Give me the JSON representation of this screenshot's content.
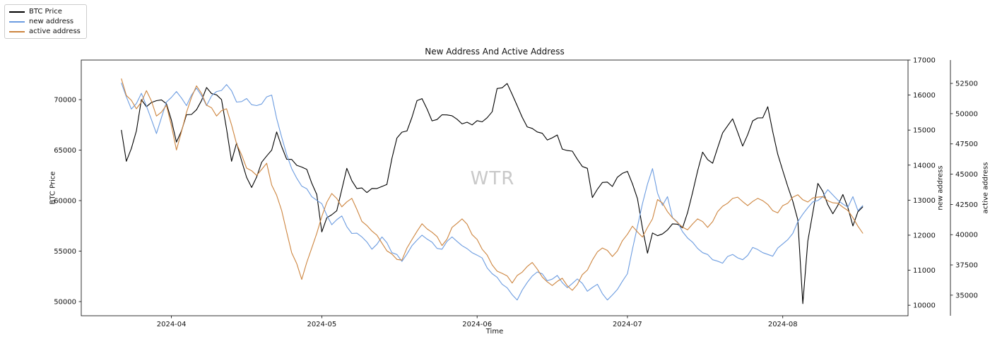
{
  "chart_data": {
    "type": "line",
    "title": "New Address And Active Address",
    "xlabel": "Time",
    "watermark": "WTR",
    "grid": false,
    "legend_position": "upper-left-outside",
    "x_axis": {
      "lim": [
        "2024-03-14",
        "2024-08-26"
      ],
      "ticks": [
        {
          "date": "2024-04-01",
          "label": "2024-04"
        },
        {
          "date": "2024-05-01",
          "label": "2024-05"
        },
        {
          "date": "2024-06-01",
          "label": "2024-06"
        },
        {
          "date": "2024-07-01",
          "label": "2024-07"
        },
        {
          "date": "2024-08-01",
          "label": "2024-08"
        }
      ]
    },
    "y_axes": {
      "btc": {
        "label": "BTC Price",
        "side": "left",
        "lim": [
          48600,
          73920
        ],
        "ticks": [
          50000,
          55000,
          60000,
          65000,
          70000
        ]
      },
      "new": {
        "label": "new address",
        "side": "right",
        "lim": [
          9700,
          17000
        ],
        "ticks": [
          10000,
          11000,
          12000,
          13000,
          14000,
          15000,
          16000,
          17000
        ]
      },
      "active": {
        "label": "active address",
        "side": "right-outer",
        "lim": [
          33300,
          54430
        ],
        "ticks": [
          35000,
          37500,
          40000,
          42500,
          45000,
          47500,
          50000,
          52500
        ]
      }
    },
    "series": [
      {
        "name": "BTC Price",
        "axis": "btc",
        "color": "#000000",
        "points": [
          [
            "2024-03-22",
            67000
          ],
          [
            "2024-03-23",
            63900
          ],
          [
            "2024-03-25",
            66900
          ],
          [
            "2024-03-26",
            70000
          ],
          [
            "2024-03-27",
            69300
          ],
          [
            "2024-03-29",
            69900
          ],
          [
            "2024-03-31",
            69600
          ],
          [
            "2024-04-02",
            65800
          ],
          [
            "2024-04-04",
            68500
          ],
          [
            "2024-04-06",
            69000
          ],
          [
            "2024-04-08",
            71200
          ],
          [
            "2024-04-09",
            70600
          ],
          [
            "2024-04-11",
            70000
          ],
          [
            "2024-04-12",
            67100
          ],
          [
            "2024-04-13",
            63900
          ],
          [
            "2024-04-14",
            65700
          ],
          [
            "2024-04-16",
            62300
          ],
          [
            "2024-04-17",
            61300
          ],
          [
            "2024-04-19",
            63800
          ],
          [
            "2024-04-21",
            65000
          ],
          [
            "2024-04-22",
            66800
          ],
          [
            "2024-04-24",
            64100
          ],
          [
            "2024-04-26",
            63500
          ],
          [
            "2024-04-28",
            63100
          ],
          [
            "2024-04-30",
            60600
          ],
          [
            "2024-05-01",
            56900
          ],
          [
            "2024-05-02",
            58300
          ],
          [
            "2024-05-04",
            59000
          ],
          [
            "2024-05-06",
            63200
          ],
          [
            "2024-05-08",
            61200
          ],
          [
            "2024-05-10",
            60800
          ],
          [
            "2024-05-12",
            61200
          ],
          [
            "2024-05-14",
            61600
          ],
          [
            "2024-05-16",
            66200
          ],
          [
            "2024-05-18",
            66900
          ],
          [
            "2024-05-20",
            69900
          ],
          [
            "2024-05-21",
            70100
          ],
          [
            "2024-05-23",
            67900
          ],
          [
            "2024-05-25",
            68500
          ],
          [
            "2024-05-27",
            68400
          ],
          [
            "2024-05-29",
            67600
          ],
          [
            "2024-05-31",
            67500
          ],
          [
            "2024-06-02",
            67800
          ],
          [
            "2024-06-04",
            68800
          ],
          [
            "2024-06-05",
            71100
          ],
          [
            "2024-06-07",
            71600
          ],
          [
            "2024-06-09",
            69400
          ],
          [
            "2024-06-11",
            67300
          ],
          [
            "2024-06-13",
            66800
          ],
          [
            "2024-06-15",
            66000
          ],
          [
            "2024-06-17",
            66500
          ],
          [
            "2024-06-18",
            65100
          ],
          [
            "2024-06-20",
            64900
          ],
          [
            "2024-06-21",
            64100
          ],
          [
            "2024-06-23",
            63200
          ],
          [
            "2024-06-24",
            60300
          ],
          [
            "2024-06-26",
            61800
          ],
          [
            "2024-06-28",
            61400
          ],
          [
            "2024-06-30",
            62700
          ],
          [
            "2024-07-01",
            62900
          ],
          [
            "2024-07-03",
            60200
          ],
          [
            "2024-07-05",
            54800
          ],
          [
            "2024-07-06",
            56800
          ],
          [
            "2024-07-08",
            56700
          ],
          [
            "2024-07-10",
            57700
          ],
          [
            "2024-07-12",
            57300
          ],
          [
            "2024-07-14",
            60800
          ],
          [
            "2024-07-16",
            64800
          ],
          [
            "2024-07-18",
            63700
          ],
          [
            "2024-07-20",
            66700
          ],
          [
            "2024-07-22",
            68100
          ],
          [
            "2024-07-24",
            65400
          ],
          [
            "2024-07-26",
            67900
          ],
          [
            "2024-07-28",
            68200
          ],
          [
            "2024-07-29",
            69300
          ],
          [
            "2024-07-31",
            64600
          ],
          [
            "2024-08-02",
            61400
          ],
          [
            "2024-08-04",
            58100
          ],
          [
            "2024-08-05",
            49800
          ],
          [
            "2024-08-06",
            56000
          ],
          [
            "2024-08-08",
            61700
          ],
          [
            "2024-08-09",
            60900
          ],
          [
            "2024-08-11",
            58700
          ],
          [
            "2024-08-13",
            60600
          ],
          [
            "2024-08-14",
            59300
          ],
          [
            "2024-08-15",
            57500
          ],
          [
            "2024-08-16",
            58900
          ],
          [
            "2024-08-17",
            59400
          ]
        ]
      },
      {
        "name": "new address",
        "axis": "new",
        "color": "#6c9ce0",
        "points": [
          [
            "2024-03-22",
            16350
          ],
          [
            "2024-03-24",
            15600
          ],
          [
            "2024-03-26",
            16050
          ],
          [
            "2024-03-28",
            15300
          ],
          [
            "2024-03-29",
            14900
          ],
          [
            "2024-03-31",
            15800
          ],
          [
            "2024-04-02",
            16100
          ],
          [
            "2024-04-04",
            15700
          ],
          [
            "2024-04-06",
            16200
          ],
          [
            "2024-04-08",
            15700
          ],
          [
            "2024-04-10",
            16100
          ],
          [
            "2024-04-12",
            16300
          ],
          [
            "2024-04-14",
            15800
          ],
          [
            "2024-04-16",
            15900
          ],
          [
            "2024-04-18",
            15700
          ],
          [
            "2024-04-20",
            15950
          ],
          [
            "2024-04-21",
            16000
          ],
          [
            "2024-04-23",
            14800
          ],
          [
            "2024-04-25",
            13900
          ],
          [
            "2024-04-27",
            13400
          ],
          [
            "2024-04-29",
            13100
          ],
          [
            "2024-05-01",
            12900
          ],
          [
            "2024-05-03",
            12300
          ],
          [
            "2024-05-05",
            12550
          ],
          [
            "2024-05-07",
            12050
          ],
          [
            "2024-05-09",
            11950
          ],
          [
            "2024-05-11",
            11600
          ],
          [
            "2024-05-13",
            11950
          ],
          [
            "2024-05-15",
            11500
          ],
          [
            "2024-05-17",
            11250
          ],
          [
            "2024-05-19",
            11700
          ],
          [
            "2024-05-21",
            12000
          ],
          [
            "2024-05-23",
            11800
          ],
          [
            "2024-05-25",
            11600
          ],
          [
            "2024-05-27",
            11950
          ],
          [
            "2024-05-29",
            11700
          ],
          [
            "2024-05-31",
            11500
          ],
          [
            "2024-06-02",
            11350
          ],
          [
            "2024-06-04",
            10900
          ],
          [
            "2024-06-06",
            10600
          ],
          [
            "2024-06-08",
            10300
          ],
          [
            "2024-06-09",
            10150
          ],
          [
            "2024-06-11",
            10650
          ],
          [
            "2024-06-13",
            10950
          ],
          [
            "2024-06-15",
            10700
          ],
          [
            "2024-06-17",
            10850
          ],
          [
            "2024-06-19",
            10500
          ],
          [
            "2024-06-21",
            10750
          ],
          [
            "2024-06-23",
            10400
          ],
          [
            "2024-06-25",
            10600
          ],
          [
            "2024-06-27",
            10150
          ],
          [
            "2024-06-29",
            10450
          ],
          [
            "2024-07-01",
            10900
          ],
          [
            "2024-07-02",
            11600
          ],
          [
            "2024-07-04",
            12900
          ],
          [
            "2024-07-06",
            13900
          ],
          [
            "2024-07-07",
            13200
          ],
          [
            "2024-07-08",
            12850
          ],
          [
            "2024-07-09",
            13100
          ],
          [
            "2024-07-10",
            12500
          ],
          [
            "2024-07-12",
            12100
          ],
          [
            "2024-07-14",
            11800
          ],
          [
            "2024-07-16",
            11500
          ],
          [
            "2024-07-18",
            11300
          ],
          [
            "2024-07-20",
            11200
          ],
          [
            "2024-07-22",
            11450
          ],
          [
            "2024-07-24",
            11300
          ],
          [
            "2024-07-26",
            11650
          ],
          [
            "2024-07-28",
            11500
          ],
          [
            "2024-07-30",
            11400
          ],
          [
            "2024-08-01",
            11750
          ],
          [
            "2024-08-03",
            12050
          ],
          [
            "2024-08-05",
            12600
          ],
          [
            "2024-08-07",
            12950
          ],
          [
            "2024-08-09",
            13100
          ],
          [
            "2024-08-10",
            13300
          ],
          [
            "2024-08-12",
            13000
          ],
          [
            "2024-08-14",
            12800
          ],
          [
            "2024-08-15",
            13100
          ],
          [
            "2024-08-16",
            12700
          ],
          [
            "2024-08-17",
            12850
          ]
        ]
      },
      {
        "name": "active address",
        "axis": "active",
        "color": "#cd853f",
        "points": [
          [
            "2024-03-22",
            52900
          ],
          [
            "2024-03-23",
            51500
          ],
          [
            "2024-03-25",
            50400
          ],
          [
            "2024-03-27",
            51900
          ],
          [
            "2024-03-29",
            49800
          ],
          [
            "2024-03-31",
            50700
          ],
          [
            "2024-04-01",
            49000
          ],
          [
            "2024-04-02",
            47000
          ],
          [
            "2024-04-04",
            50100
          ],
          [
            "2024-04-06",
            52300
          ],
          [
            "2024-04-08",
            50700
          ],
          [
            "2024-04-10",
            49800
          ],
          [
            "2024-04-12",
            50400
          ],
          [
            "2024-04-14",
            47500
          ],
          [
            "2024-04-16",
            45500
          ],
          [
            "2024-04-18",
            44900
          ],
          [
            "2024-04-20",
            45900
          ],
          [
            "2024-04-21",
            44100
          ],
          [
            "2024-04-23",
            42000
          ],
          [
            "2024-04-25",
            38500
          ],
          [
            "2024-04-27",
            36300
          ],
          [
            "2024-04-29",
            38900
          ],
          [
            "2024-05-01",
            41500
          ],
          [
            "2024-05-03",
            43400
          ],
          [
            "2024-05-05",
            42300
          ],
          [
            "2024-05-07",
            43000
          ],
          [
            "2024-05-09",
            41100
          ],
          [
            "2024-05-11",
            40300
          ],
          [
            "2024-05-13",
            39300
          ],
          [
            "2024-05-15",
            38400
          ],
          [
            "2024-05-17",
            37900
          ],
          [
            "2024-05-19",
            39600
          ],
          [
            "2024-05-21",
            40900
          ],
          [
            "2024-05-23",
            40200
          ],
          [
            "2024-05-25",
            39100
          ],
          [
            "2024-05-27",
            40600
          ],
          [
            "2024-05-29",
            41300
          ],
          [
            "2024-05-31",
            40000
          ],
          [
            "2024-06-02",
            38800
          ],
          [
            "2024-06-04",
            37500
          ],
          [
            "2024-06-06",
            36800
          ],
          [
            "2024-06-08",
            36000
          ],
          [
            "2024-06-10",
            36900
          ],
          [
            "2024-06-12",
            37700
          ],
          [
            "2024-06-14",
            36500
          ],
          [
            "2024-06-16",
            35800
          ],
          [
            "2024-06-18",
            36400
          ],
          [
            "2024-06-20",
            35400
          ],
          [
            "2024-06-22",
            36700
          ],
          [
            "2024-06-24",
            37900
          ],
          [
            "2024-06-26",
            38900
          ],
          [
            "2024-06-28",
            38200
          ],
          [
            "2024-06-30",
            39500
          ],
          [
            "2024-07-02",
            40700
          ],
          [
            "2024-07-04",
            39800
          ],
          [
            "2024-07-06",
            41300
          ],
          [
            "2024-07-07",
            42900
          ],
          [
            "2024-07-09",
            41900
          ],
          [
            "2024-07-11",
            41000
          ],
          [
            "2024-07-13",
            40400
          ],
          [
            "2024-07-15",
            41300
          ],
          [
            "2024-07-17",
            40600
          ],
          [
            "2024-07-19",
            41900
          ],
          [
            "2024-07-21",
            42600
          ],
          [
            "2024-07-23",
            43100
          ],
          [
            "2024-07-25",
            42400
          ],
          [
            "2024-07-27",
            43000
          ],
          [
            "2024-07-29",
            42500
          ],
          [
            "2024-07-31",
            41800
          ],
          [
            "2024-08-02",
            42600
          ],
          [
            "2024-08-04",
            43300
          ],
          [
            "2024-08-06",
            42700
          ],
          [
            "2024-08-08",
            43100
          ],
          [
            "2024-08-10",
            42800
          ],
          [
            "2024-08-12",
            42600
          ],
          [
            "2024-08-14",
            42000
          ],
          [
            "2024-08-15",
            41400
          ],
          [
            "2024-08-16",
            40700
          ],
          [
            "2024-08-17",
            40100
          ]
        ]
      }
    ]
  }
}
